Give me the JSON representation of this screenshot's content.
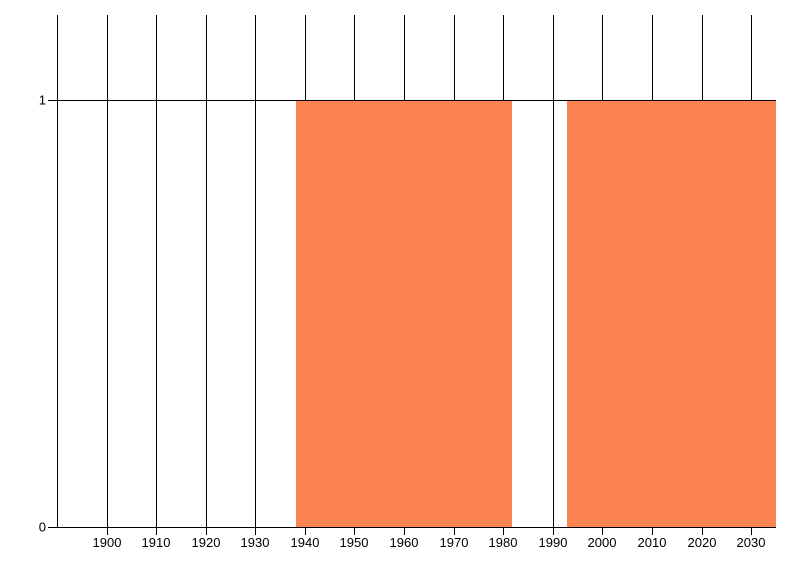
{
  "chart": {
    "background": "#ffffff",
    "gridline_color": "#000000",
    "axis_color": "#000000",
    "tick_label_color": "#000000",
    "series_color": "#fc8452"
  },
  "chart_data": {
    "type": "area",
    "title": "",
    "xlabel": "",
    "ylabel": "",
    "grid": true,
    "legend_position": "none",
    "xlim": [
      1888.2,
      2035
    ],
    "ylim": [
      0,
      1.2
    ],
    "x_gridlines": [
      1890,
      1900,
      1910,
      1920,
      1930,
      1940,
      1950,
      1960,
      1970,
      1980,
      1990,
      2000,
      2010,
      2020,
      2030
    ],
    "x_ticks": [
      1900,
      1910,
      1920,
      1930,
      1940,
      1950,
      1960,
      1970,
      1980,
      1990,
      2000,
      2010,
      2020,
      2030
    ],
    "x_tick_labels": [
      "1900",
      "1910",
      "1920",
      "1930",
      "1940",
      "1950",
      "1960",
      "1970",
      "1980",
      "1990",
      "2000",
      "2010",
      "2020",
      "2030"
    ],
    "y_ticks": [
      0,
      1
    ],
    "y_tick_labels": [
      "0",
      "1"
    ],
    "series": [
      {
        "color": "#fc8452",
        "segments": [
          {
            "x_start": 1938.2,
            "x_end": 1981.7,
            "value": 1
          },
          {
            "x_start": 1992.9,
            "x_end": 2035.0,
            "value": 1
          }
        ]
      }
    ]
  }
}
